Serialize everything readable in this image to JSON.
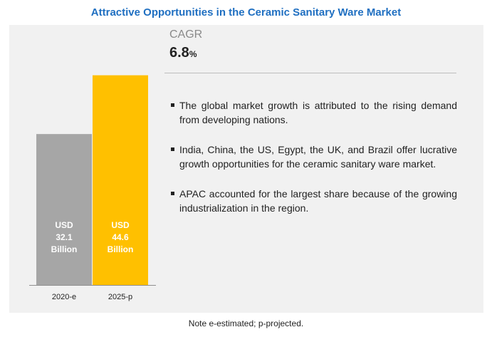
{
  "title": "Attractive Opportunities in the Ceramic Sanitary Ware Market",
  "cagr": {
    "label": "CAGR",
    "value": "6.8",
    "unit": "%"
  },
  "bullets": [
    "The global market growth is attributed to the rising demand from developing nations.",
    "India, China, the US, Egypt, the UK, and Brazil offer lucrative growth opportunities for the ceramic sanitary ware market.",
    "APAC accounted for the largest share because of the growing industrialization in the region."
  ],
  "note": "Note e-estimated; p-projected.",
  "chart_data": {
    "type": "bar",
    "categories": [
      "2020-e",
      "2025-p"
    ],
    "values": [
      32.1,
      44.6
    ],
    "bar_labels": [
      [
        "USD",
        "32.1",
        "Billion"
      ],
      [
        "USD",
        "44.6",
        "Billion"
      ]
    ],
    "colors": [
      "#a6a6a6",
      "#ffc000"
    ],
    "title": "Attractive Opportunities in the Ceramic Sanitary Ware Market",
    "xlabel": "",
    "ylabel": "",
    "grid": false
  }
}
